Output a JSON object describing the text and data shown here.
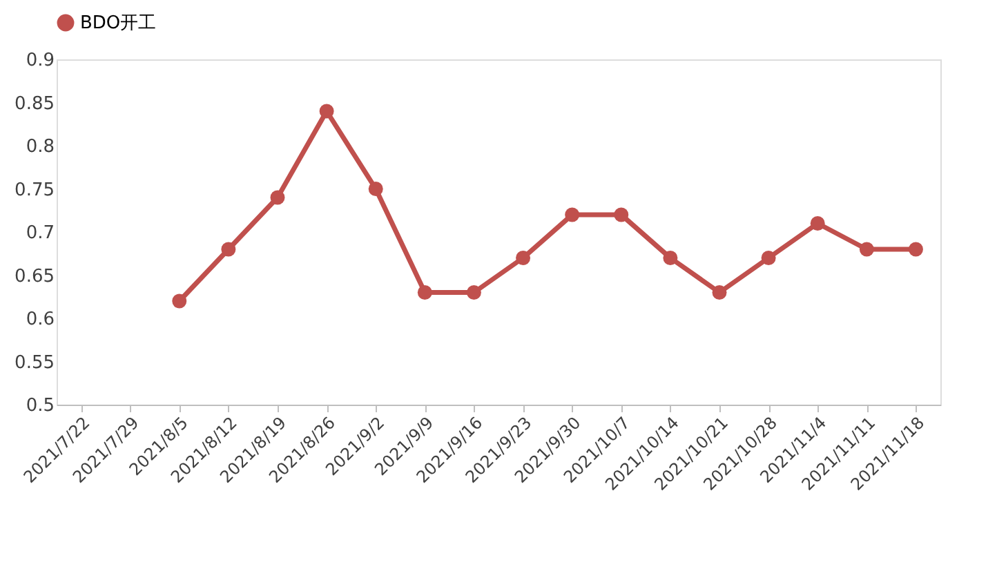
{
  "chart_data": {
    "type": "line",
    "categories": [
      "2021/7/22",
      "2021/7/29",
      "2021/8/5",
      "2021/8/12",
      "2021/8/19",
      "2021/8/26",
      "2021/9/2",
      "2021/9/9",
      "2021/9/16",
      "2021/9/23",
      "2021/9/30",
      "2021/10/7",
      "2021/10/14",
      "2021/10/21",
      "2021/10/28",
      "2021/11/4",
      "2021/11/11",
      "2021/11/18"
    ],
    "series": [
      {
        "name": "BDO开工",
        "color": "#c0504d",
        "values": [
          null,
          null,
          0.62,
          0.68,
          0.74,
          0.84,
          0.75,
          0.63,
          0.63,
          0.67,
          0.72,
          0.72,
          0.67,
          0.63,
          0.67,
          0.71,
          0.68,
          0.68
        ]
      }
    ],
    "ylim": [
      0.5,
      0.9
    ],
    "yticks": [
      0.5,
      0.55,
      0.6,
      0.65,
      0.7,
      0.75,
      0.8,
      0.85,
      0.9
    ],
    "grid": false,
    "legend": "top",
    "marker": "circle",
    "line_style": "solid"
  }
}
